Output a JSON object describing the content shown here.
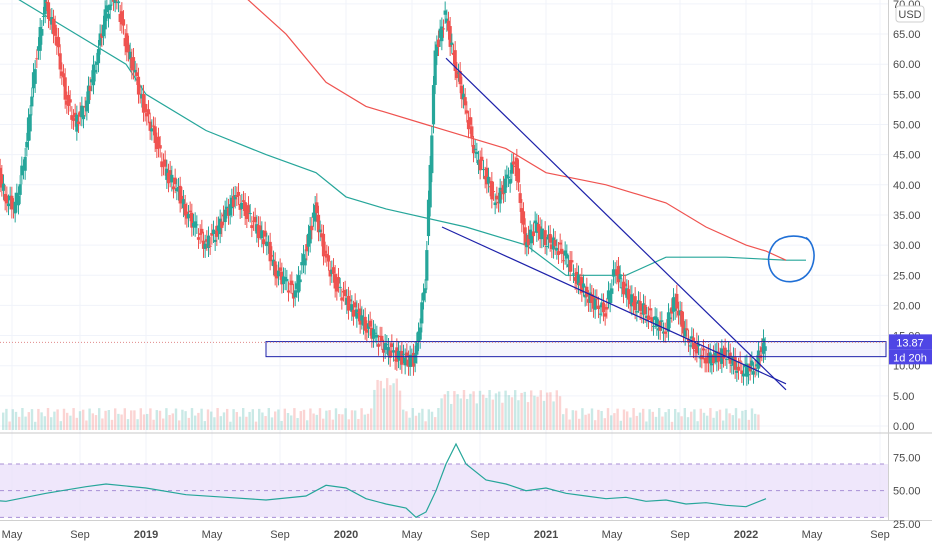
{
  "chart_data": {
    "type": "candlestick",
    "currency": "USD",
    "price_axis": {
      "ylim": [
        0,
        70
      ],
      "ticks": [
        "70.00",
        "65.00",
        "60.00",
        "55.00",
        "50.00",
        "45.00",
        "40.00",
        "35.00",
        "30.00",
        "25.00",
        "20.00",
        "15.00",
        "10.00",
        "5.00",
        "0.00"
      ]
    },
    "time_axis": {
      "ticks": [
        "May",
        "Sep",
        "2019",
        "May",
        "Sep",
        "2020",
        "May",
        "Sep",
        "2021",
        "May",
        "Sep",
        "2022",
        "May",
        "Sep"
      ],
      "bold": [
        "2019",
        "2020",
        "2021",
        "2022"
      ]
    },
    "price_tag": {
      "label": "13.87",
      "value": 13.87,
      "color": "#4f46e5"
    },
    "timer_tag": {
      "label": "1d 20h"
    },
    "moving_averages": [
      {
        "color": "#26a69a",
        "points": [
          [
            -0.8,
            74
          ],
          [
            -0.4,
            66
          ],
          [
            -0.1,
            60
          ],
          [
            0,
            55
          ],
          [
            0.3,
            49
          ],
          [
            0.6,
            45
          ],
          [
            0.85,
            42
          ],
          [
            1,
            38
          ],
          [
            1.2,
            36
          ],
          [
            1.6,
            33
          ],
          [
            1.9,
            30
          ],
          [
            2.1,
            25
          ],
          [
            2.4,
            25
          ],
          [
            2.6,
            28
          ],
          [
            2.9,
            28
          ],
          [
            3.2,
            27.5
          ],
          [
            3.3,
            27.5
          ]
        ]
      },
      {
        "color": "#ef5350",
        "points": [
          [
            0.4,
            74
          ],
          [
            0.7,
            65
          ],
          [
            0.9,
            57
          ],
          [
            1.1,
            53
          ],
          [
            1.4,
            50
          ],
          [
            1.8,
            46
          ],
          [
            2,
            42
          ],
          [
            2.3,
            40
          ],
          [
            2.6,
            37
          ],
          [
            2.8,
            33
          ],
          [
            3,
            30
          ],
          [
            3.1,
            29
          ],
          [
            3.2,
            27.5
          ]
        ]
      }
    ],
    "price_path": [
      [
        -1.0,
        62
      ],
      [
        -0.95,
        58
      ],
      [
        -0.85,
        48
      ],
      [
        -0.75,
        44
      ],
      [
        -0.7,
        38
      ],
      [
        -0.65,
        36
      ],
      [
        -0.6,
        45
      ],
      [
        -0.55,
        60
      ],
      [
        -0.5,
        70
      ],
      [
        -0.45,
        65
      ],
      [
        -0.4,
        55
      ],
      [
        -0.35,
        50
      ],
      [
        -0.3,
        53
      ],
      [
        -0.25,
        60
      ],
      [
        -0.2,
        68
      ],
      [
        -0.15,
        72
      ],
      [
        -0.1,
        64
      ],
      [
        -0.05,
        58
      ],
      [
        0,
        52
      ],
      [
        0.05,
        48
      ],
      [
        0.1,
        42
      ],
      [
        0.15,
        40
      ],
      [
        0.2,
        36
      ],
      [
        0.25,
        33
      ],
      [
        0.3,
        30
      ],
      [
        0.35,
        32
      ],
      [
        0.4,
        35
      ],
      [
        0.45,
        38
      ],
      [
        0.5,
        36
      ],
      [
        0.55,
        33
      ],
      [
        0.6,
        31
      ],
      [
        0.65,
        26
      ],
      [
        0.7,
        24
      ],
      [
        0.75,
        22
      ],
      [
        0.8,
        29
      ],
      [
        0.85,
        36
      ],
      [
        0.9,
        28
      ],
      [
        0.95,
        24
      ],
      [
        1.0,
        21
      ],
      [
        1.05,
        19
      ],
      [
        1.1,
        17
      ],
      [
        1.15,
        15
      ],
      [
        1.2,
        13
      ],
      [
        1.25,
        12
      ],
      [
        1.3,
        11
      ],
      [
        1.35,
        11
      ],
      [
        1.4,
        24
      ],
      [
        1.45,
        62
      ],
      [
        1.5,
        68
      ],
      [
        1.55,
        60
      ],
      [
        1.6,
        53
      ],
      [
        1.65,
        45
      ],
      [
        1.7,
        42
      ],
      [
        1.75,
        37
      ],
      [
        1.8,
        40
      ],
      [
        1.85,
        44
      ],
      [
        1.9,
        30
      ],
      [
        1.95,
        33
      ],
      [
        2.0,
        31
      ],
      [
        2.05,
        30
      ],
      [
        2.1,
        28
      ],
      [
        2.15,
        25
      ],
      [
        2.2,
        22
      ],
      [
        2.25,
        20
      ],
      [
        2.3,
        19
      ],
      [
        2.35,
        26
      ],
      [
        2.4,
        22
      ],
      [
        2.45,
        20
      ],
      [
        2.5,
        19
      ],
      [
        2.55,
        17
      ],
      [
        2.6,
        16
      ],
      [
        2.65,
        21
      ],
      [
        2.7,
        15
      ],
      [
        2.75,
        13
      ],
      [
        2.8,
        11
      ],
      [
        2.85,
        11
      ],
      [
        2.9,
        12
      ],
      [
        2.95,
        10
      ],
      [
        3.0,
        9
      ],
      [
        3.05,
        10
      ],
      [
        3.1,
        14
      ]
    ],
    "indicator": {
      "ticks": [
        "75.00",
        "50.00",
        "25.00"
      ],
      "ylim": [
        22,
        88
      ],
      "band": [
        30,
        70
      ],
      "line_color": "#26a69a",
      "band_color": "#e8ddf9",
      "points": [
        [
          -1,
          45
        ],
        [
          -0.7,
          42
        ],
        [
          -0.5,
          48
        ],
        [
          -0.3,
          53
        ],
        [
          -0.2,
          55
        ],
        [
          0,
          52
        ],
        [
          0.2,
          47
        ],
        [
          0.4,
          45
        ],
        [
          0.6,
          43
        ],
        [
          0.8,
          46
        ],
        [
          0.9,
          54
        ],
        [
          1,
          52
        ],
        [
          1.1,
          44
        ],
        [
          1.2,
          40
        ],
        [
          1.3,
          37
        ],
        [
          1.35,
          30
        ],
        [
          1.4,
          34
        ],
        [
          1.45,
          50
        ],
        [
          1.5,
          70
        ],
        [
          1.55,
          85
        ],
        [
          1.6,
          70
        ],
        [
          1.7,
          58
        ],
        [
          1.8,
          55
        ],
        [
          1.9,
          50
        ],
        [
          2,
          52
        ],
        [
          2.1,
          48
        ],
        [
          2.2,
          46
        ],
        [
          2.3,
          44
        ],
        [
          2.4,
          45
        ],
        [
          2.5,
          42
        ],
        [
          2.6,
          43
        ],
        [
          2.7,
          40
        ],
        [
          2.8,
          41
        ],
        [
          2.9,
          39
        ],
        [
          3,
          38
        ],
        [
          3.1,
          44
        ]
      ]
    },
    "drawings": {
      "wedge_upper": [
        [
          1.5,
          61
        ],
        [
          3.2,
          6
        ]
      ],
      "wedge_lower": [
        [
          1.48,
          33
        ],
        [
          3.2,
          7
        ]
      ],
      "zone": {
        "x": [
          0.6,
          3.7
        ],
        "y": [
          11.5,
          14
        ]
      },
      "circle": {
        "cx": 3.22,
        "cy": 27.6
      }
    }
  }
}
